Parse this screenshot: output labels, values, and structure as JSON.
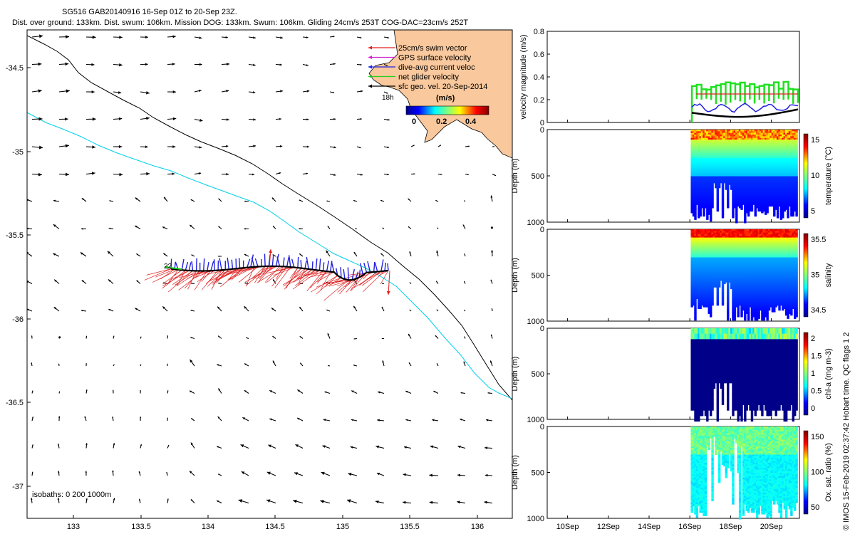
{
  "header": {
    "line1": "SG516 GAB20140916 16-Sep 01Z to 20-Sep 23Z.",
    "line2": "Dist. over ground: 133km. Dist. swum: 106km. Mission DOG: 133km. Swum: 106km. Gliding 24cm/s 253T COG-DAC=23cm/s 252T"
  },
  "map": {
    "lon_ticks": [
      "133",
      "133.5",
      "134",
      "134.5",
      "135",
      "135.5",
      "136"
    ],
    "lat_ticks": [
      "-34.5",
      "-35",
      "-35.5",
      "-36",
      "-36.5",
      "-37"
    ],
    "isobaths_label": "isobaths: 0   200  1000m",
    "start_label": "22",
    "inset_label": "18h",
    "legend": [
      {
        "label": "25cm/s swim vector",
        "color": "#e02020"
      },
      {
        "label": "GPS surface velocity",
        "color": "#d020d0"
      },
      {
        "label": "dive-avg current veloc",
        "color": "#2020e0"
      },
      {
        "label": "net glider velocity",
        "color": "#20d020"
      },
      {
        "label": "sfc geo. vel. 20-Sep-2014",
        "color": "#000000"
      }
    ],
    "colorbar": {
      "title": "(m/s)",
      "ticks": [
        "0",
        "0.2",
        "0.4"
      ]
    },
    "colors": {
      "coast": "#000000",
      "isobath200": "#000000",
      "isobath1000": "#00d0e8",
      "land": "#f9c89c",
      "swim": "#e02020",
      "current": "#2020e0",
      "track": "#000000",
      "net": "#20d020"
    }
  },
  "chart_data": [
    {
      "type": "line",
      "ylabel": "velocity magnitude (m/s)",
      "ylim": [
        0,
        0.8
      ],
      "yticks": [
        "0",
        "0.2",
        "0.4",
        "0.6",
        "0.8"
      ],
      "series": [
        {
          "color": "#20e020",
          "values_range": [
            0.2,
            0.38
          ]
        },
        {
          "color": "#e02020",
          "values": [
            0.25
          ]
        },
        {
          "color": "#2020e0",
          "values_range": [
            0.1,
            0.17
          ]
        },
        {
          "color": "#000000",
          "values_range": [
            0.02,
            0.09
          ]
        }
      ]
    },
    {
      "type": "heatmap",
      "ylabel": "Depth (m)",
      "yticks": [
        "0",
        "500",
        "1000"
      ],
      "clabel": "temperature (°C)",
      "cticks": [
        "15",
        "10",
        "5"
      ]
    },
    {
      "type": "heatmap",
      "ylabel": "Depth (m)",
      "yticks": [
        "0",
        "500",
        "1000"
      ],
      "clabel": "salinity",
      "cticks": [
        "35.5",
        "35",
        "34.5"
      ]
    },
    {
      "type": "heatmap",
      "ylabel": "Depth (m)",
      "yticks": [
        "0",
        "500",
        "1000"
      ],
      "clabel": "chl-a (mg m-3)",
      "cticks": [
        "2",
        "1.5",
        "1",
        "0.5",
        "0"
      ]
    },
    {
      "type": "heatmap",
      "ylabel": "Depth (m)",
      "yticks": [
        "0",
        "500",
        "1000"
      ],
      "clabel": "Ox. sat. ratio (%)",
      "cticks": [
        "150",
        "100",
        "50"
      ]
    }
  ],
  "time_axis": {
    "ticks": [
      "10Sep",
      "12Sep",
      "14Sep",
      "16Sep",
      "18Sep",
      "20Sep"
    ]
  },
  "side_note": "© IMOS 15-Feb-2019 02:37:42 Hobart time. QC flags 1  2"
}
